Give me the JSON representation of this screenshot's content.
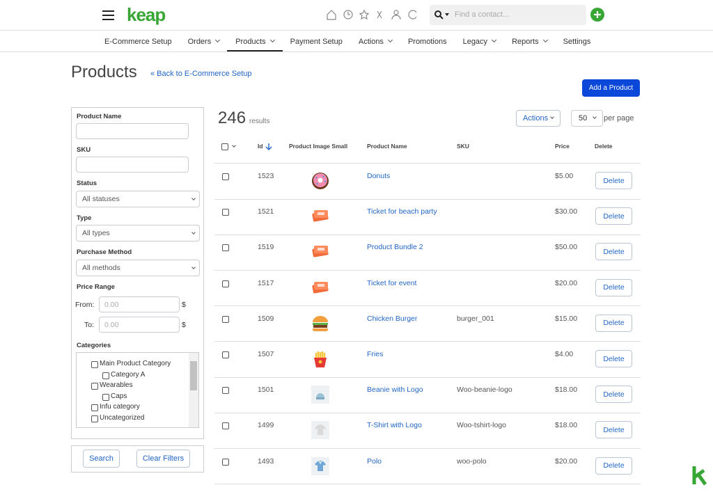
{
  "header": {
    "logo": "keap",
    "search_placeholder": "Find a contact..."
  },
  "nav": [
    {
      "label": "E-Commerce Setup",
      "dropdown": false,
      "active": false
    },
    {
      "label": "Orders",
      "dropdown": true,
      "active": false
    },
    {
      "label": "Products",
      "dropdown": true,
      "active": true
    },
    {
      "label": "Payment Setup",
      "dropdown": false,
      "active": false
    },
    {
      "label": "Actions",
      "dropdown": true,
      "active": false
    },
    {
      "label": "Promotions",
      "dropdown": false,
      "active": false
    },
    {
      "label": "Legacy",
      "dropdown": true,
      "active": false
    },
    {
      "label": "Reports",
      "dropdown": true,
      "active": false
    },
    {
      "label": "Settings",
      "dropdown": false,
      "active": false
    }
  ],
  "page": {
    "title": "Products",
    "back_link": "« Back to E-Commerce Setup",
    "add_button": "Add a Product"
  },
  "filters": {
    "product_name": "Product Name",
    "sku": "SKU",
    "status": {
      "label": "Status",
      "value": "All statuses"
    },
    "type": {
      "label": "Type",
      "value": "All types"
    },
    "purchase_method": {
      "label": "Purchase Method",
      "value": "All methods"
    },
    "price_range": {
      "label": "Price Range",
      "from": "From:",
      "to": "To:",
      "placeholder": "0.00",
      "currency": "$"
    },
    "categories": {
      "label": "Categories",
      "items": [
        {
          "label": "Main Product Category",
          "level": 0
        },
        {
          "label": "Category A",
          "level": 1
        },
        {
          "label": "Wearables",
          "level": 0
        },
        {
          "label": "Caps",
          "level": 1
        },
        {
          "label": "Infu category",
          "level": 0
        },
        {
          "label": "Uncategorized",
          "level": 0
        }
      ]
    },
    "search": "Search",
    "clear": "Clear Filters"
  },
  "results": {
    "count": 246,
    "label": "results",
    "actions": "Actions",
    "per_page_value": 50,
    "per_page_label": "per page"
  },
  "table": {
    "columns": [
      "Id",
      "Product Image Small",
      "Product Name",
      "SKU",
      "Price",
      "Delete"
    ],
    "delete_button": "Delete",
    "rows": [
      {
        "id": 1523,
        "name": "Donuts",
        "sku": null,
        "price": "$5.00"
      },
      {
        "id": 1521,
        "name": "Ticket for beach party",
        "sku": null,
        "price": "$30.00"
      },
      {
        "id": 1519,
        "name": "Product Bundle 2",
        "sku": null,
        "price": "$50.00"
      },
      {
        "id": 1517,
        "name": "Ticket for event",
        "sku": null,
        "price": "$20.00"
      },
      {
        "id": 1509,
        "name": "Chicken Burger",
        "sku": "burger_001",
        "price": "$15.00"
      },
      {
        "id": 1507,
        "name": "Fries",
        "sku": null,
        "price": "$4.00"
      },
      {
        "id": 1501,
        "name": "Beanie with Logo",
        "sku": "Woo-beanie-logo",
        "price": "$18.00"
      },
      {
        "id": 1499,
        "name": "T-Shirt with Logo",
        "sku": "Woo-tshirt-logo",
        "price": "$18.00"
      },
      {
        "id": 1493,
        "name": "Polo",
        "sku": "woo-polo",
        "price": "$20.00"
      }
    ]
  }
}
